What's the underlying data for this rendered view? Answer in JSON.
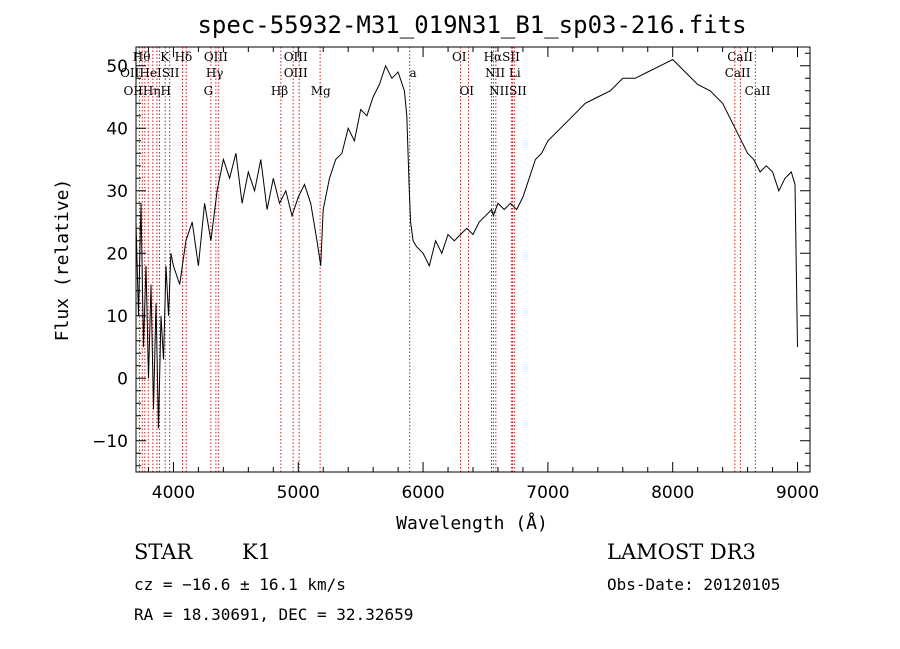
{
  "chart_data": {
    "type": "line",
    "title": "spec-55932-M31_019N31_B1_sp03-216.fits",
    "xlabel": "Wavelength (Å)",
    "ylabel": "Flux (relative)",
    "xlim": [
      3700,
      9100
    ],
    "ylim": [
      -15,
      53
    ],
    "xticks": [
      4000,
      5000,
      6000,
      7000,
      8000,
      9000
    ],
    "yticks": [
      -10,
      0,
      10,
      20,
      30,
      40,
      50
    ],
    "grid": false,
    "series": [
      {
        "x": [
          3700,
          3720,
          3740,
          3760,
          3780,
          3800,
          3820,
          3840,
          3860,
          3880,
          3900,
          3920,
          3940,
          3960,
          3980,
          4000,
          4050,
          4100,
          4150,
          4200,
          4250,
          4300,
          4350,
          4400,
          4450,
          4500,
          4550,
          4600,
          4650,
          4700,
          4750,
          4800,
          4850,
          4900,
          4950,
          5000,
          5050,
          5100,
          5150,
          5180,
          5200,
          5250,
          5300,
          5350,
          5400,
          5450,
          5500,
          5550,
          5600,
          5650,
          5700,
          5750,
          5800,
          5850,
          5870,
          5890,
          5900,
          5920,
          5950,
          6000,
          6050,
          6100,
          6150,
          6200,
          6250,
          6300,
          6350,
          6400,
          6450,
          6500,
          6550,
          6563,
          6600,
          6650,
          6700,
          6750,
          6800,
          6850,
          6900,
          6950,
          7000,
          7100,
          7200,
          7300,
          7400,
          7500,
          7600,
          7700,
          7800,
          7900,
          8000,
          8100,
          8200,
          8300,
          8400,
          8500,
          8550,
          8600,
          8650,
          8700,
          8750,
          8800,
          8850,
          8900,
          8950,
          8980,
          9000
        ],
        "y": [
          25,
          10,
          28,
          5,
          18,
          0,
          15,
          -5,
          12,
          -8,
          10,
          3,
          18,
          10,
          20,
          18,
          15,
          22,
          25,
          18,
          28,
          22,
          30,
          35,
          32,
          36,
          28,
          33,
          30,
          35,
          27,
          32,
          28,
          30,
          26,
          29,
          31,
          28,
          22,
          18,
          27,
          32,
          35,
          36,
          40,
          38,
          43,
          42,
          45,
          47,
          50,
          48,
          49,
          46,
          42,
          30,
          25,
          22,
          21,
          20,
          18,
          22,
          20,
          23,
          22,
          23,
          24,
          23,
          25,
          26,
          27,
          26,
          28,
          27,
          28,
          27,
          29,
          32,
          35,
          36,
          38,
          40,
          42,
          44,
          45,
          46,
          48,
          48,
          49,
          50,
          51,
          49,
          47,
          46,
          44,
          40,
          38,
          36,
          35,
          33,
          34,
          33,
          30,
          32,
          33,
          31,
          5
        ]
      }
    ],
    "line_markers": [
      {
        "x": 3727,
        "label": "OII"
      },
      {
        "x": 3750,
        "label": "Hθ"
      },
      {
        "x": 3771,
        "label": "Hη"
      },
      {
        "x": 3798,
        "label": ""
      },
      {
        "x": 3835,
        "label": ""
      },
      {
        "x": 3868,
        "label": "HeI"
      },
      {
        "x": 3889,
        "label": "H"
      },
      {
        "x": 3934,
        "label": "K"
      },
      {
        "x": 3970,
        "label": "H"
      },
      {
        "x": 4072,
        "label": "SII"
      },
      {
        "x": 4102,
        "label": "Hδ"
      },
      {
        "x": 4300,
        "label": "G"
      },
      {
        "x": 4340,
        "label": "Hγ"
      },
      {
        "x": 4363,
        "label": "OIII"
      },
      {
        "x": 4861,
        "label": "Hβ"
      },
      {
        "x": 4959,
        "label": "OIII"
      },
      {
        "x": 5007,
        "label": "OIII"
      },
      {
        "x": 5175,
        "label": "Mg"
      },
      {
        "x": 5893,
        "label": "a"
      },
      {
        "x": 6300,
        "label": "OI"
      },
      {
        "x": 6364,
        "label": "OI"
      },
      {
        "x": 6548,
        "label": "NII"
      },
      {
        "x": 6563,
        "label": "Hα"
      },
      {
        "x": 6583,
        "label": "NII"
      },
      {
        "x": 6707,
        "label": "Li"
      },
      {
        "x": 6716,
        "label": "SII"
      },
      {
        "x": 6731,
        "label": "SII"
      },
      {
        "x": 8498,
        "label": "CaII"
      },
      {
        "x": 8542,
        "label": "CaII"
      },
      {
        "x": 8662,
        "label": "CaII"
      }
    ],
    "marker_labels": [
      {
        "text": "Hθ",
        "x": 3745,
        "row": 0
      },
      {
        "text": "K",
        "x": 3930,
        "row": 0
      },
      {
        "text": "Hδ",
        "x": 4080,
        "row": 0
      },
      {
        "text": "OIII",
        "x": 4340,
        "row": 0
      },
      {
        "text": "OIII",
        "x": 4980,
        "row": 0
      },
      {
        "text": "OI",
        "x": 6290,
        "row": 0
      },
      {
        "text": "HαSII",
        "x": 6630,
        "row": 0
      },
      {
        "text": "CaII",
        "x": 8540,
        "row": 0
      },
      {
        "text": "OIIHeISII",
        "x": 3810,
        "row": 1
      },
      {
        "text": "Hγ",
        "x": 4330,
        "row": 1
      },
      {
        "text": "OIII",
        "x": 4980,
        "row": 1
      },
      {
        "text": "a",
        "x": 5920,
        "row": 1
      },
      {
        "text": "NII Li",
        "x": 6640,
        "row": 1
      },
      {
        "text": "CaII",
        "x": 8520,
        "row": 1
      },
      {
        "text": "OIIHηH",
        "x": 3790,
        "row": 2
      },
      {
        "text": "G",
        "x": 4280,
        "row": 2
      },
      {
        "text": "Hβ",
        "x": 4850,
        "row": 2
      },
      {
        "text": "Mg",
        "x": 5180,
        "row": 2
      },
      {
        "text": "OI",
        "x": 6350,
        "row": 2
      },
      {
        "text": "NIISII",
        "x": 6680,
        "row": 2
      },
      {
        "text": "CaII",
        "x": 8680,
        "row": 2
      }
    ],
    "colors": {
      "spectrum": "#000000",
      "markers": "#cc0000",
      "axes": "#000000"
    }
  },
  "info": {
    "object_class": "STAR",
    "subclass": "K1",
    "survey": "LAMOST DR3",
    "redshift": "cz = −16.6 ± 16.1 km/s",
    "obs_date": "Obs-Date: 20120105",
    "coords": "RA =  18.30691, DEC =  32.32659"
  }
}
